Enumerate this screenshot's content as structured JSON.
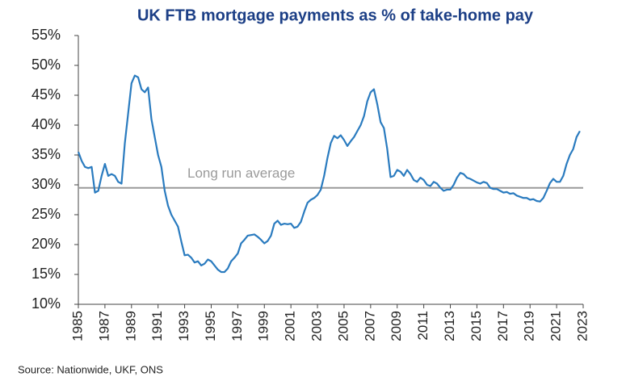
{
  "chart_data": {
    "type": "line",
    "title": "UK FTB mortgage payments as % of take-home pay",
    "source": "Source: Nationwide, UKF, ONS",
    "reference_line": {
      "label": "Long run average",
      "value": 29.5,
      "color": "#9a9a9a"
    },
    "x": [
      1985,
      1985.25,
      1985.5,
      1985.75,
      1986,
      1986.25,
      1986.5,
      1986.75,
      1987,
      1987.25,
      1987.5,
      1987.75,
      1988,
      1988.25,
      1988.5,
      1988.75,
      1989,
      1989.25,
      1989.5,
      1989.75,
      1990,
      1990.25,
      1990.5,
      1990.75,
      1991,
      1991.25,
      1991.5,
      1991.75,
      1992,
      1992.25,
      1992.5,
      1992.75,
      1993,
      1993.25,
      1993.5,
      1993.75,
      1994,
      1994.25,
      1994.5,
      1994.75,
      1995,
      1995.25,
      1995.5,
      1995.75,
      1996,
      1996.25,
      1996.5,
      1996.75,
      1997,
      1997.25,
      1997.5,
      1997.75,
      1998,
      1998.25,
      1998.5,
      1998.75,
      1999,
      1999.25,
      1999.5,
      1999.75,
      2000,
      2000.25,
      2000.5,
      2000.75,
      2001,
      2001.25,
      2001.5,
      2001.75,
      2002,
      2002.25,
      2002.5,
      2002.75,
      2003,
      2003.25,
      2003.5,
      2003.75,
      2004,
      2004.25,
      2004.5,
      2004.75,
      2005,
      2005.25,
      2005.5,
      2005.75,
      2006,
      2006.25,
      2006.5,
      2006.75,
      2007,
      2007.25,
      2007.5,
      2007.75,
      2008,
      2008.25,
      2008.5,
      2008.75,
      2009,
      2009.25,
      2009.5,
      2009.75,
      2010,
      2010.25,
      2010.5,
      2010.75,
      2011,
      2011.25,
      2011.5,
      2011.75,
      2012,
      2012.25,
      2012.5,
      2012.75,
      2013,
      2013.25,
      2013.5,
      2013.75,
      2014,
      2014.25,
      2014.5,
      2014.75,
      2015,
      2015.25,
      2015.5,
      2015.75,
      2016,
      2016.25,
      2016.5,
      2016.75,
      2017,
      2017.25,
      2017.5,
      2017.75,
      2018,
      2018.25,
      2018.5,
      2018.75,
      2019,
      2019.25,
      2019.5,
      2019.75,
      2020,
      2020.25,
      2020.5,
      2020.75,
      2021,
      2021.25,
      2021.5,
      2021.75,
      2022,
      2022.25,
      2022.5,
      2022.75
    ],
    "series": [
      {
        "name": "FTB mortgage payments",
        "color": "#2a7bbf",
        "values": [
          35.5,
          34,
          33,
          32.8,
          33,
          28.7,
          29,
          31.5,
          33.5,
          31.5,
          31.8,
          31.5,
          30.5,
          30.2,
          37,
          42,
          47,
          48.3,
          48,
          46,
          45.5,
          46.3,
          41,
          38,
          35,
          33,
          29,
          26.5,
          25,
          24,
          23,
          20.5,
          18.2,
          18.3,
          17.8,
          17,
          17.2,
          16.5,
          16.8,
          17.5,
          17.2,
          16.5,
          15.8,
          15.4,
          15.4,
          16,
          17.2,
          17.8,
          18.5,
          20.2,
          20.8,
          21.5,
          21.6,
          21.7,
          21.3,
          20.8,
          20.2,
          20.6,
          21.5,
          23.5,
          24,
          23.3,
          23.5,
          23.4,
          23.5,
          22.8,
          23,
          23.8,
          25.5,
          27,
          27.5,
          27.8,
          28.3,
          29.2,
          31.5,
          34.5,
          37,
          38.2,
          37.8,
          38.3,
          37.5,
          36.5,
          37.3,
          38,
          39,
          40,
          41.5,
          44,
          45.5,
          46,
          43.5,
          40.5,
          39.5,
          36,
          31.3,
          31.5,
          32.5,
          32.2,
          31.5,
          32.5,
          31.8,
          30.8,
          30.5,
          31.2,
          30.8,
          30,
          29.8,
          30.5,
          30.2,
          29.5,
          29,
          29.2,
          29.2,
          30,
          31.2,
          32,
          31.8,
          31.2,
          31,
          30.7,
          30.4,
          30.2,
          30.5,
          30.3,
          29.5,
          29.3,
          29.3,
          29,
          28.7,
          28.8,
          28.5,
          28.6,
          28.2,
          28,
          27.8,
          27.8,
          27.5,
          27.6,
          27.3,
          27.2,
          27.8,
          29,
          30.3,
          31,
          30.5,
          30.5,
          31.5,
          33.5,
          35,
          36,
          38,
          39
        ]
      }
    ],
    "xlim": [
      1985,
      2023
    ],
    "xticks": [
      1985,
      1987,
      1989,
      1991,
      1993,
      1995,
      1997,
      1999,
      2001,
      2003,
      2005,
      2007,
      2009,
      2011,
      2013,
      2015,
      2017,
      2019,
      2021,
      2023
    ],
    "ylim": [
      10,
      55
    ],
    "yticks": [
      {
        "value": 10,
        "label": "10%"
      },
      {
        "value": 15,
        "label": "15%"
      },
      {
        "value": 20,
        "label": "20%"
      },
      {
        "value": 25,
        "label": "25%"
      },
      {
        "value": 30,
        "label": "30%"
      },
      {
        "value": 35,
        "label": "35%"
      },
      {
        "value": 40,
        "label": "40%"
      },
      {
        "value": 45,
        "label": "45%"
      },
      {
        "value": 50,
        "label": "50%"
      },
      {
        "value": 55,
        "label": "55%"
      }
    ]
  }
}
